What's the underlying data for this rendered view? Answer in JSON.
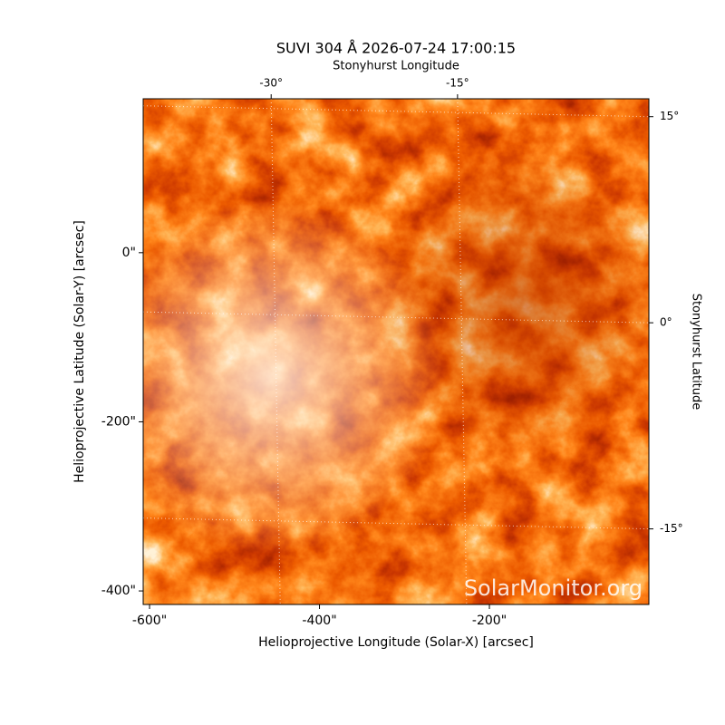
{
  "chart_data": {
    "type": "image",
    "title": "SUVI 304 Å 2026-07-24 17:00:15",
    "x_label": "Helioprojective Longitude (Solar-X) [arcsec]",
    "y_label": "Helioprojective Latitude (Solar-Y) [arcsec]",
    "x2_label": "Stonyhurst Longitude",
    "y2_label": "Stonyhurst Latitude",
    "watermark": "SolarMonitor.org",
    "xlim": [
      -607.5,
      -12.3
    ],
    "xticks": [
      {
        "value": -600,
        "label": "-600\""
      },
      {
        "value": -400,
        "label": "-400\""
      },
      {
        "value": -200,
        "label": "-200\""
      }
    ],
    "ylim": [
      -416,
      182
    ],
    "yticks": [
      {
        "value": -400,
        "label": "-400\""
      },
      {
        "value": -200,
        "label": "-200\""
      },
      {
        "value": 0,
        "label": "0\""
      }
    ],
    "x2lim": [
      -40.3,
      0.4
    ],
    "x2ticks": [
      {
        "value": -30,
        "label": "-30°"
      },
      {
        "value": -15,
        "label": "-15°"
      }
    ],
    "y2lim": [
      -20.5,
      16.3
    ],
    "y2ticks": [
      {
        "value": -15,
        "label": "-15°"
      },
      {
        "value": 0,
        "label": "0°"
      },
      {
        "value": 15,
        "label": "15°"
      }
    ],
    "grid": true
  }
}
